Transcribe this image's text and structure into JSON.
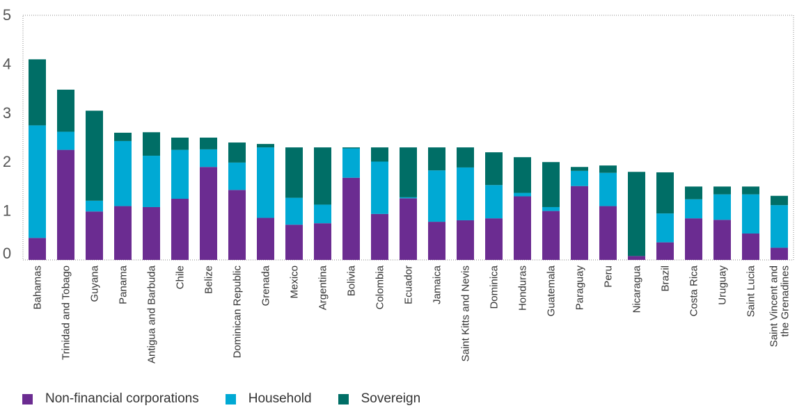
{
  "chart_data": {
    "type": "bar",
    "stacked": true,
    "title": "",
    "xlabel": "",
    "ylabel": "",
    "ylim": [
      0,
      5
    ],
    "yticks": [
      "0",
      "1",
      "2",
      "3",
      "4",
      "5"
    ],
    "categories": [
      "Bahamas",
      "Trinidad and Tobago",
      "Guyana",
      "Panama",
      "Antigua and Barbuda",
      "Chile",
      "Belize",
      "Dominican Republic",
      "Grenada",
      "Mexico",
      "Argentina",
      "Bolivia",
      "Colombia",
      "Ecuador",
      "Jamaica",
      "Saint Kitts and Nevis",
      "Dominica",
      "Honduras",
      "Guatemala",
      "Paraguay",
      "Peru",
      "Nicaragua",
      "Brazil",
      "Costa Rica",
      "Uruguay",
      "Saint Lucia",
      "Saint Vincent and the Grenadines"
    ],
    "category_lines": [
      [
        "Bahamas"
      ],
      [
        "Trinidad and Tobago"
      ],
      [
        "Guyana"
      ],
      [
        "Panama"
      ],
      [
        "Antigua and Barbuda"
      ],
      [
        "Chile"
      ],
      [
        "Belize"
      ],
      [
        "Dominican Republic"
      ],
      [
        "Grenada"
      ],
      [
        "Mexico"
      ],
      [
        "Argentina"
      ],
      [
        "Bolivia"
      ],
      [
        "Colombia"
      ],
      [
        "Ecuador"
      ],
      [
        "Jamaica"
      ],
      [
        "Saint Kitts and Nevis"
      ],
      [
        "Dominica"
      ],
      [
        "Honduras"
      ],
      [
        "Guatemala"
      ],
      [
        "Paraguay"
      ],
      [
        "Peru"
      ],
      [
        "Nicaragua"
      ],
      [
        "Brazil"
      ],
      [
        "Costa Rica"
      ],
      [
        "Uruguay"
      ],
      [
        "Saint Lucia"
      ],
      [
        "Saint Vincent and",
        "the Grenadines"
      ]
    ],
    "series": [
      {
        "name": "Non-financial corporations",
        "color": "#6b2c91",
        "values": [
          0.45,
          2.25,
          0.99,
          1.1,
          1.08,
          1.25,
          1.9,
          1.43,
          0.86,
          0.72,
          0.75,
          1.68,
          0.94,
          1.26,
          0.78,
          0.81,
          0.85,
          1.3,
          1.0,
          1.51,
          1.1,
          0.08,
          0.36,
          0.85,
          0.82,
          0.54,
          0.25
        ]
      },
      {
        "name": "Household",
        "color": "#00a9d4",
        "values": [
          2.3,
          0.37,
          0.22,
          1.33,
          1.05,
          1.0,
          0.36,
          0.56,
          1.44,
          0.55,
          0.38,
          0.6,
          1.07,
          0.02,
          1.05,
          1.08,
          0.68,
          0.07,
          0.08,
          0.31,
          0.68,
          0.0,
          0.59,
          0.39,
          0.52,
          0.8,
          0.87
        ]
      },
      {
        "name": "Sovereign",
        "color": "#006e66",
        "values": [
          1.35,
          0.86,
          1.84,
          0.17,
          0.48,
          0.25,
          0.24,
          0.41,
          0.07,
          1.03,
          1.17,
          0.02,
          0.29,
          1.02,
          0.47,
          0.41,
          0.67,
          0.73,
          0.92,
          0.08,
          0.15,
          1.72,
          0.84,
          0.26,
          0.16,
          0.16,
          0.19
        ]
      }
    ],
    "legend_position": "bottom-left",
    "grid": false
  }
}
